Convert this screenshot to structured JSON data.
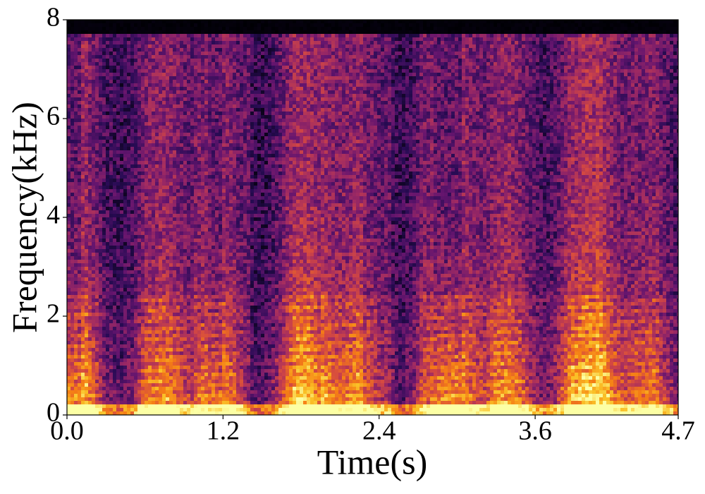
{
  "chart_data": {
    "type": "spectrogram",
    "xlabel": "Time(s)",
    "ylabel": "Frequency(kHz)",
    "xlim": [
      0,
      4.7
    ],
    "ylim": [
      0,
      8
    ],
    "xticks": [
      {
        "value": 0,
        "label": "0.0"
      },
      1.2,
      2.4,
      3.6,
      4.7
    ],
    "yticks": [
      0,
      2,
      4,
      6,
      8
    ],
    "colormap": "inferno"
  }
}
